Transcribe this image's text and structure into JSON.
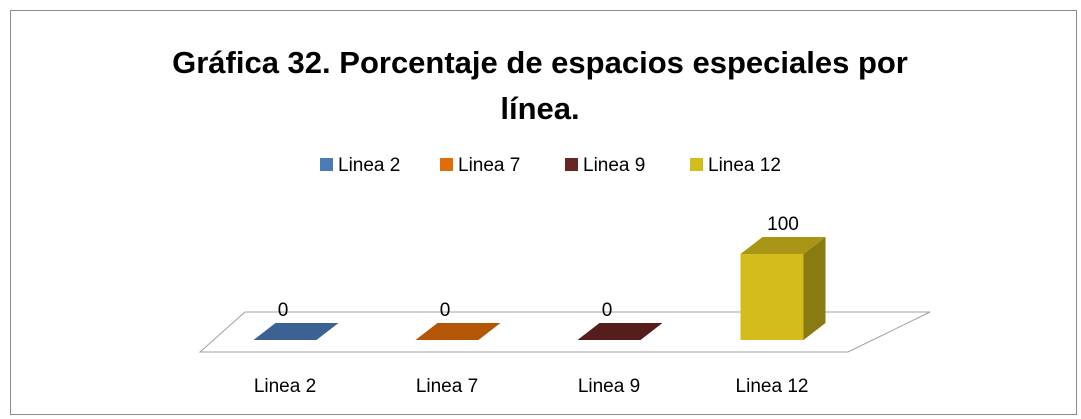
{
  "chart_data": {
    "type": "bar3d",
    "title": "Gráfica 32. Porcentaje de espacios especiales por línea.",
    "categories": [
      "Linea 2",
      "Linea 7",
      "Linea 9",
      "Linea 12"
    ],
    "values": [
      0,
      0,
      0,
      100
    ],
    "colors": [
      "#4a7ab8",
      "#e06c0a",
      "#6b2424",
      "#d4bc1c"
    ],
    "legend": "top"
  }
}
